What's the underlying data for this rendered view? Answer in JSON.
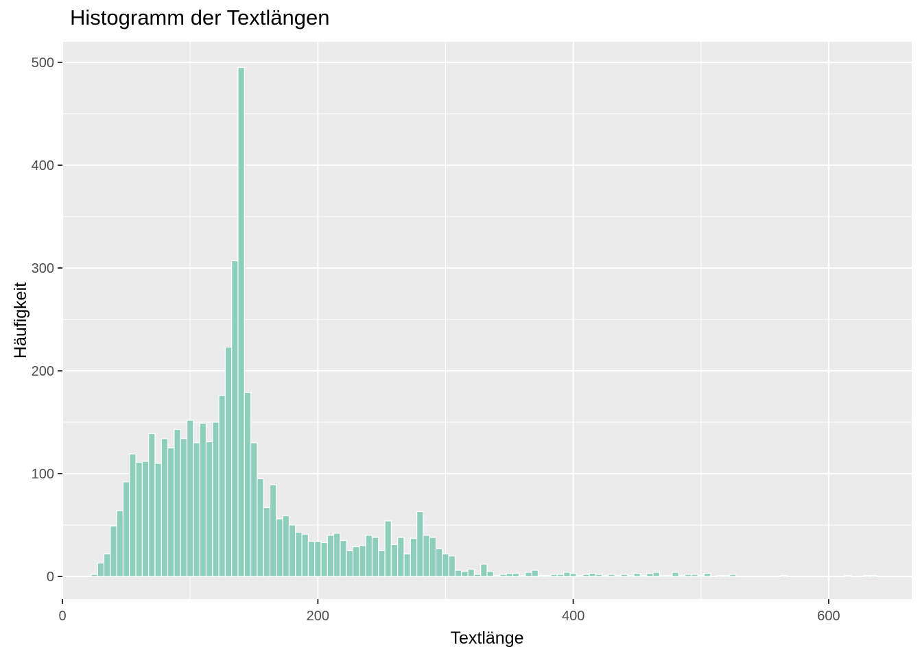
{
  "chart_data": {
    "type": "bar",
    "title": "Histogramm der Textlängen",
    "xlabel": "Textlänge",
    "ylabel": "Häufigkeit",
    "xlim": [
      0,
      665
    ],
    "ylim": [
      -22,
      520
    ],
    "x_ticks": [
      0,
      200,
      400,
      600
    ],
    "y_ticks": [
      0,
      100,
      200,
      300,
      400,
      500
    ],
    "grid": true,
    "bin_width": 5,
    "fill_color": "#8ecfbb",
    "border_color": "#ffffff",
    "panel_color": "#ebebeb",
    "bins": [
      {
        "x": 25,
        "y": 2
      },
      {
        "x": 30,
        "y": 13
      },
      {
        "x": 35,
        "y": 22
      },
      {
        "x": 40,
        "y": 49
      },
      {
        "x": 45,
        "y": 64
      },
      {
        "x": 50,
        "y": 92
      },
      {
        "x": 55,
        "y": 119
      },
      {
        "x": 60,
        "y": 111
      },
      {
        "x": 65,
        "y": 112
      },
      {
        "x": 70,
        "y": 139
      },
      {
        "x": 75,
        "y": 110
      },
      {
        "x": 80,
        "y": 134
      },
      {
        "x": 85,
        "y": 125
      },
      {
        "x": 90,
        "y": 143
      },
      {
        "x": 95,
        "y": 134
      },
      {
        "x": 100,
        "y": 152
      },
      {
        "x": 105,
        "y": 130
      },
      {
        "x": 110,
        "y": 149
      },
      {
        "x": 115,
        "y": 131
      },
      {
        "x": 120,
        "y": 150
      },
      {
        "x": 125,
        "y": 176
      },
      {
        "x": 130,
        "y": 223
      },
      {
        "x": 135,
        "y": 307
      },
      {
        "x": 140,
        "y": 495
      },
      {
        "x": 145,
        "y": 179
      },
      {
        "x": 150,
        "y": 130
      },
      {
        "x": 155,
        "y": 95
      },
      {
        "x": 160,
        "y": 67
      },
      {
        "x": 165,
        "y": 89
      },
      {
        "x": 170,
        "y": 56
      },
      {
        "x": 175,
        "y": 59
      },
      {
        "x": 180,
        "y": 50
      },
      {
        "x": 185,
        "y": 43
      },
      {
        "x": 190,
        "y": 41
      },
      {
        "x": 195,
        "y": 34
      },
      {
        "x": 200,
        "y": 34
      },
      {
        "x": 205,
        "y": 33
      },
      {
        "x": 210,
        "y": 40
      },
      {
        "x": 215,
        "y": 42
      },
      {
        "x": 220,
        "y": 35
      },
      {
        "x": 225,
        "y": 25
      },
      {
        "x": 230,
        "y": 29
      },
      {
        "x": 235,
        "y": 30
      },
      {
        "x": 240,
        "y": 40
      },
      {
        "x": 245,
        "y": 38
      },
      {
        "x": 250,
        "y": 25
      },
      {
        "x": 255,
        "y": 54
      },
      {
        "x": 260,
        "y": 31
      },
      {
        "x": 265,
        "y": 38
      },
      {
        "x": 270,
        "y": 22
      },
      {
        "x": 275,
        "y": 37
      },
      {
        "x": 280,
        "y": 63
      },
      {
        "x": 285,
        "y": 40
      },
      {
        "x": 290,
        "y": 38
      },
      {
        "x": 295,
        "y": 27
      },
      {
        "x": 300,
        "y": 22
      },
      {
        "x": 305,
        "y": 20
      },
      {
        "x": 310,
        "y": 6
      },
      {
        "x": 315,
        "y": 5
      },
      {
        "x": 320,
        "y": 7
      },
      {
        "x": 325,
        "y": 2
      },
      {
        "x": 330,
        "y": 12
      },
      {
        "x": 335,
        "y": 5
      },
      {
        "x": 340,
        "y": 1
      },
      {
        "x": 345,
        "y": 2
      },
      {
        "x": 350,
        "y": 3
      },
      {
        "x": 355,
        "y": 3
      },
      {
        "x": 360,
        "y": 1
      },
      {
        "x": 365,
        "y": 4
      },
      {
        "x": 370,
        "y": 6
      },
      {
        "x": 375,
        "y": 1
      },
      {
        "x": 380,
        "y": 1
      },
      {
        "x": 385,
        "y": 2
      },
      {
        "x": 390,
        "y": 2
      },
      {
        "x": 395,
        "y": 4
      },
      {
        "x": 400,
        "y": 3
      },
      {
        "x": 405,
        "y": 1
      },
      {
        "x": 410,
        "y": 2
      },
      {
        "x": 415,
        "y": 3
      },
      {
        "x": 420,
        "y": 2
      },
      {
        "x": 425,
        "y": 1
      },
      {
        "x": 430,
        "y": 2
      },
      {
        "x": 435,
        "y": 1
      },
      {
        "x": 440,
        "y": 2
      },
      {
        "x": 445,
        "y": 1
      },
      {
        "x": 450,
        "y": 3
      },
      {
        "x": 455,
        "y": 1
      },
      {
        "x": 460,
        "y": 3
      },
      {
        "x": 465,
        "y": 4
      },
      {
        "x": 470,
        "y": 1
      },
      {
        "x": 475,
        "y": 1
      },
      {
        "x": 480,
        "y": 4
      },
      {
        "x": 485,
        "y": 1
      },
      {
        "x": 490,
        "y": 2
      },
      {
        "x": 495,
        "y": 2
      },
      {
        "x": 500,
        "y": 1
      },
      {
        "x": 505,
        "y": 3
      },
      {
        "x": 515,
        "y": 1
      },
      {
        "x": 520,
        "y": 1
      },
      {
        "x": 525,
        "y": 2
      },
      {
        "x": 565,
        "y": 1
      },
      {
        "x": 615,
        "y": 1
      },
      {
        "x": 630,
        "y": 1
      },
      {
        "x": 635,
        "y": 1
      }
    ]
  }
}
